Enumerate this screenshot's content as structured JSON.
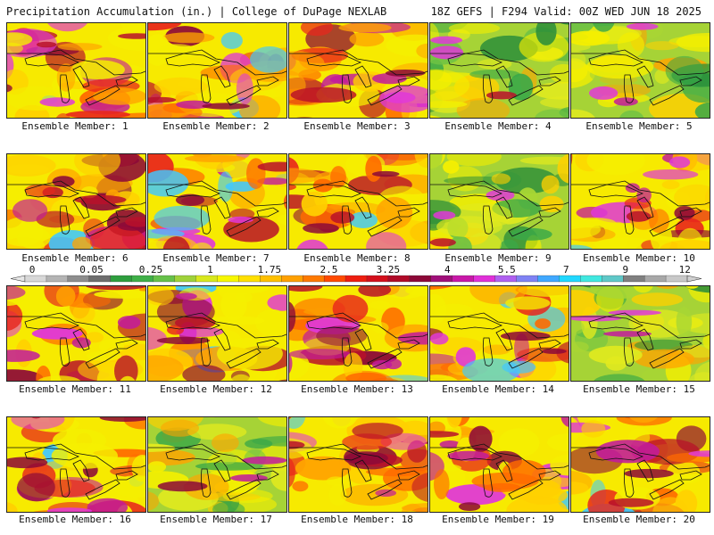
{
  "header": {
    "left": "Precipitation Accumulation (in.) | College of DuPage NEXLAB",
    "right": "18Z GEFS | F294 Valid: 00Z WED JUN 18 2025"
  },
  "members": [
    {
      "label": "Ensemble Member: 1"
    },
    {
      "label": "Ensemble Member: 2"
    },
    {
      "label": "Ensemble Member: 3"
    },
    {
      "label": "Ensemble Member: 4"
    },
    {
      "label": "Ensemble Member: 5"
    },
    {
      "label": "Ensemble Member: 6"
    },
    {
      "label": "Ensemble Member: 7"
    },
    {
      "label": "Ensemble Member: 8"
    },
    {
      "label": "Ensemble Member: 9"
    },
    {
      "label": "Ensemble Member: 10"
    },
    {
      "label": "Ensemble Member: 11"
    },
    {
      "label": "Ensemble Member: 12"
    },
    {
      "label": "Ensemble Member: 13"
    },
    {
      "label": "Ensemble Member: 14"
    },
    {
      "label": "Ensemble Member: 15"
    },
    {
      "label": "Ensemble Member: 16"
    },
    {
      "label": "Ensemble Member: 17"
    },
    {
      "label": "Ensemble Member: 18"
    },
    {
      "label": "Ensemble Member: 19"
    },
    {
      "label": "Ensemble Member: 20"
    }
  ],
  "colorbar": {
    "labels": [
      "0",
      "0.05",
      "0.25",
      "1",
      "1.75",
      "2.5",
      "3.25",
      "4",
      "5.5",
      "7",
      "9",
      "12"
    ],
    "colors": [
      "#d8d8d8",
      "#b4b4b4",
      "#8e8e8e",
      "#6e6e6e",
      "#2e9e3e",
      "#3fb048",
      "#66c14a",
      "#9fd23a",
      "#d8e81e",
      "#f7f700",
      "#ffe000",
      "#ffc000",
      "#ffa000",
      "#ff7a00",
      "#ff4a00",
      "#ee1e10",
      "#d4101c",
      "#b00a28",
      "#8c0838",
      "#a0107a",
      "#c818a8",
      "#e030d8",
      "#b060f0",
      "#7f82f4",
      "#40a8ff",
      "#20d8ff",
      "#40e8e0",
      "#5fc8c8",
      "#808080",
      "#a8a8a8",
      "#c8c8c8"
    ]
  }
}
